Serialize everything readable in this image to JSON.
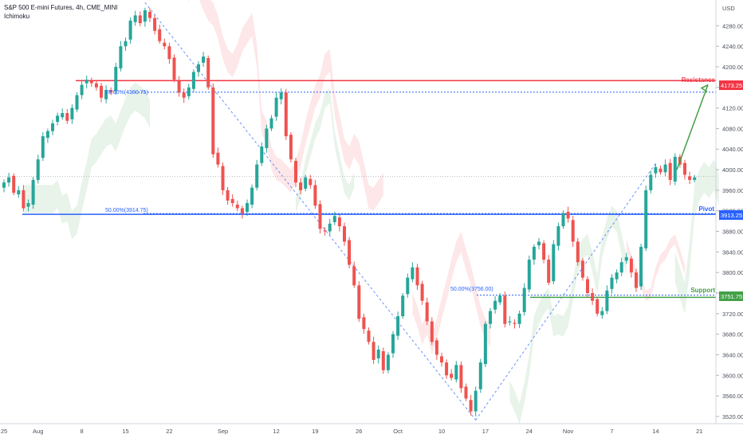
{
  "header": {
    "symbol_line": "S&P 500 E-mini Futures, 4h, CME_MINI",
    "indicator": "Ichimoku"
  },
  "axis": {
    "currency": "USD"
  },
  "colors": {
    "up": "#26a69a",
    "down": "#ef5350",
    "resistance": "#f23645",
    "pivot": "#2962ff",
    "support": "#43a047",
    "cloud_bull": "#43a047",
    "cloud_bear": "#f23645"
  },
  "levels": {
    "resistance": {
      "label": "Resistance",
      "value": 4173.25,
      "tag": "4173.25"
    },
    "pivot": {
      "label": "Pivot",
      "value": 3913.25,
      "tag": "3913.25"
    },
    "support": {
      "label": "Support",
      "value": 3751.75,
      "tag": "3751.75"
    }
  },
  "fib_labels": {
    "f1": {
      "text": "78.60%(4150.75)",
      "value": 4150.75
    },
    "f2": {
      "text": "50.00%(3914.75)",
      "value": 3914.75
    },
    "f3": {
      "text": "50.00%(3756.00)",
      "value": 3756.0
    }
  },
  "chart_data": {
    "type": "candlestick",
    "title": "S&P 500 E-mini Futures, 4h, CME_MINI",
    "y_ticks": [
      3520,
      3560,
      3600,
      3640,
      3680,
      3720,
      3760,
      3800,
      3840,
      3880,
      3920,
      3960,
      4000,
      4040,
      4080,
      4120,
      4160,
      4200,
      4240,
      4280
    ],
    "ylim": [
      3506,
      4330
    ],
    "x_ticks": [
      {
        "label": "25",
        "i": 0
      },
      {
        "label": "Aug",
        "i": 7
      },
      {
        "label": "8",
        "i": 16
      },
      {
        "label": "15",
        "i": 25
      },
      {
        "label": "22",
        "i": 34
      },
      {
        "label": "Sep",
        "i": 45
      },
      {
        "label": "12",
        "i": 56
      },
      {
        "label": "19",
        "i": 64
      },
      {
        "label": "26",
        "i": 73
      },
      {
        "label": "Oct",
        "i": 81
      },
      {
        "label": "10",
        "i": 90
      },
      {
        "label": "17",
        "i": 99
      },
      {
        "label": "24",
        "i": 108
      },
      {
        "label": "Nov",
        "i": 116
      },
      {
        "label": "7",
        "i": 125
      },
      {
        "label": "14",
        "i": 134
      },
      {
        "label": "21",
        "i": 143
      }
    ],
    "closes": [
      3975,
      3985,
      3955,
      3960,
      3925,
      3935,
      3980,
      4020,
      4065,
      4075,
      4090,
      4105,
      4110,
      4095,
      4120,
      4145,
      4165,
      4175,
      4168,
      4160,
      4140,
      4155,
      4150,
      4200,
      4240,
      4250,
      4290,
      4300,
      4285,
      4310,
      4295,
      4270,
      4250,
      4240,
      4215,
      4175,
      4150,
      4140,
      4160,
      4190,
      4205,
      4220,
      4160,
      4030,
      4010,
      3960,
      3940,
      3935,
      3925,
      3915,
      3935,
      3965,
      4010,
      4045,
      4080,
      4100,
      4140,
      4150,
      4065,
      4020,
      3975,
      3960,
      3985,
      3970,
      3930,
      3885,
      3880,
      3895,
      3910,
      3890,
      3860,
      3815,
      3775,
      3710,
      3690,
      3665,
      3630,
      3650,
      3610,
      3640,
      3680,
      3715,
      3755,
      3790,
      3810,
      3775,
      3745,
      3705,
      3665,
      3640,
      3625,
      3600,
      3595,
      3620,
      3575,
      3555,
      3530,
      3570,
      3625,
      3700,
      3725,
      3745,
      3755,
      3700,
      3705,
      3700,
      3720,
      3770,
      3825,
      3850,
      3860,
      3825,
      3780,
      3855,
      3890,
      3915,
      3905,
      3860,
      3820,
      3790,
      3760,
      3745,
      3720,
      3725,
      3765,
      3790,
      3800,
      3820,
      3830,
      3800,
      3770,
      3850,
      3960,
      3990,
      4005,
      3995,
      4010,
      3980,
      4025,
      4010,
      3990,
      3980,
      3985
    ],
    "resistance": 4173.25,
    "pivot": 3913.25,
    "support": 3751.75
  }
}
